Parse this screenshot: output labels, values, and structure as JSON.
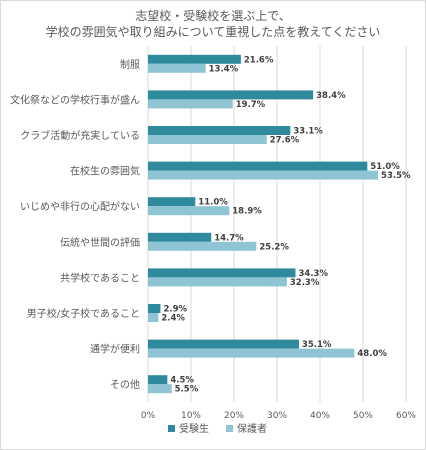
{
  "chart_data": {
    "type": "bar",
    "orientation": "horizontal",
    "title": "志望校・受験校を選ぶ上で、\n学校の雰囲気や取り組みについて重視した点を教えてください",
    "categories": [
      "制服",
      "文化祭などの学校行事が盛ん",
      "クラブ活動が充実している",
      "在校生の雰囲気",
      "いじめや非行の心配がない",
      "伝統や世間の評価",
      "共学校であること",
      "男子校/女子校であること",
      "通学が便利",
      "その他"
    ],
    "series": [
      {
        "name": "受験生",
        "color": "#2e8a9c",
        "values": [
          21.6,
          38.4,
          33.1,
          51.0,
          11.0,
          14.7,
          34.3,
          2.9,
          35.1,
          4.5
        ]
      },
      {
        "name": "保護者",
        "color": "#8fc4d4",
        "values": [
          13.4,
          19.7,
          27.6,
          53.5,
          18.9,
          25.2,
          32.3,
          2.4,
          48.0,
          5.5
        ]
      }
    ],
    "xlim": [
      0,
      60
    ],
    "xticks": [
      "0%",
      "10%",
      "20%",
      "30%",
      "40%",
      "50%",
      "60%"
    ],
    "value_labels": [
      [
        "21.6%",
        "13.4%"
      ],
      [
        "38.4%",
        "19.7%"
      ],
      [
        "33.1%",
        "27.6%"
      ],
      [
        "51.0%",
        "53.5%"
      ],
      [
        "11.0%",
        "18.9%"
      ],
      [
        "14.7%",
        "25.2%"
      ],
      [
        "34.3%",
        "32.3%"
      ],
      [
        "2.9%",
        "2.4%"
      ],
      [
        "35.1%",
        "48.0%"
      ],
      [
        "4.5%",
        "5.5%"
      ]
    ],
    "grid": true,
    "legend_position": "bottom"
  }
}
